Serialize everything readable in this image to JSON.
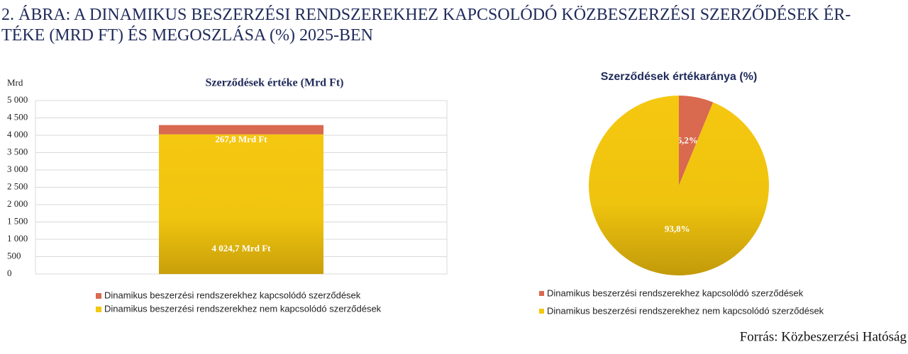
{
  "header": {
    "title": "2. ÁBRA: A DINAMIKUS BESZERZÉSI RENDSZEREKHEZ KAPCSOLÓDÓ KÖZBESZERZÉSI SZERZŐDÉSEK ÉRTÉKE (MRD FT) ÉS MEGOSZLÁSA (%) 2025-BEN"
  },
  "chart_data": [
    {
      "type": "bar",
      "stacked": true,
      "title": "Szerződések értéke (Mrd Ft)",
      "y_label": "Mrd",
      "categories": [
        null
      ],
      "series": [
        {
          "name": "Dinamikus beszerzési rendszerekhez kapcsolódó  szerződések",
          "color": "#d9694f",
          "values": [
            267.8
          ],
          "value_labels": [
            "267,8 Mrd Ft"
          ]
        },
        {
          "name": "Dinamikus beszerzési rendszerekhez nem kapcsolódó szerződések",
          "color": "#f2c811",
          "values": [
            4024.7
          ],
          "value_labels": [
            "4 024,7 Mrd Ft"
          ]
        }
      ],
      "ylim": [
        0,
        5000
      ],
      "yticks": [
        0,
        500,
        {
          "value": 1000,
          "label": "1 000"
        },
        {
          "value": 1500,
          "label": "1 500"
        },
        {
          "value": 2000,
          "label": "2 000"
        },
        {
          "value": 2500,
          "label": "2 500"
        },
        {
          "value": 3000,
          "label": "3 000"
        },
        {
          "value": 3500,
          "label": "3 500"
        },
        {
          "value": 4000,
          "label": "4 000"
        },
        {
          "value": 4500,
          "label": "4 500"
        },
        {
          "value": 5000,
          "label": "5 000"
        }
      ],
      "grid": true
    },
    {
      "type": "pie",
      "title": "Szerződések értékaránya (%)",
      "categories": [
        "Dinamikus beszerzési rendszerekhez kapcsolódó  szerződések",
        "Dinamikus beszerzési rendszerekhez nem kapcsolódó szerződések"
      ],
      "values": [
        6.2,
        93.8
      ],
      "value_labels": [
        "6,2%",
        "93,8%"
      ],
      "colors": [
        "#d9694f",
        "#f2c811"
      ]
    }
  ],
  "source": "Forrás: Közbeszerzési Hatóság"
}
